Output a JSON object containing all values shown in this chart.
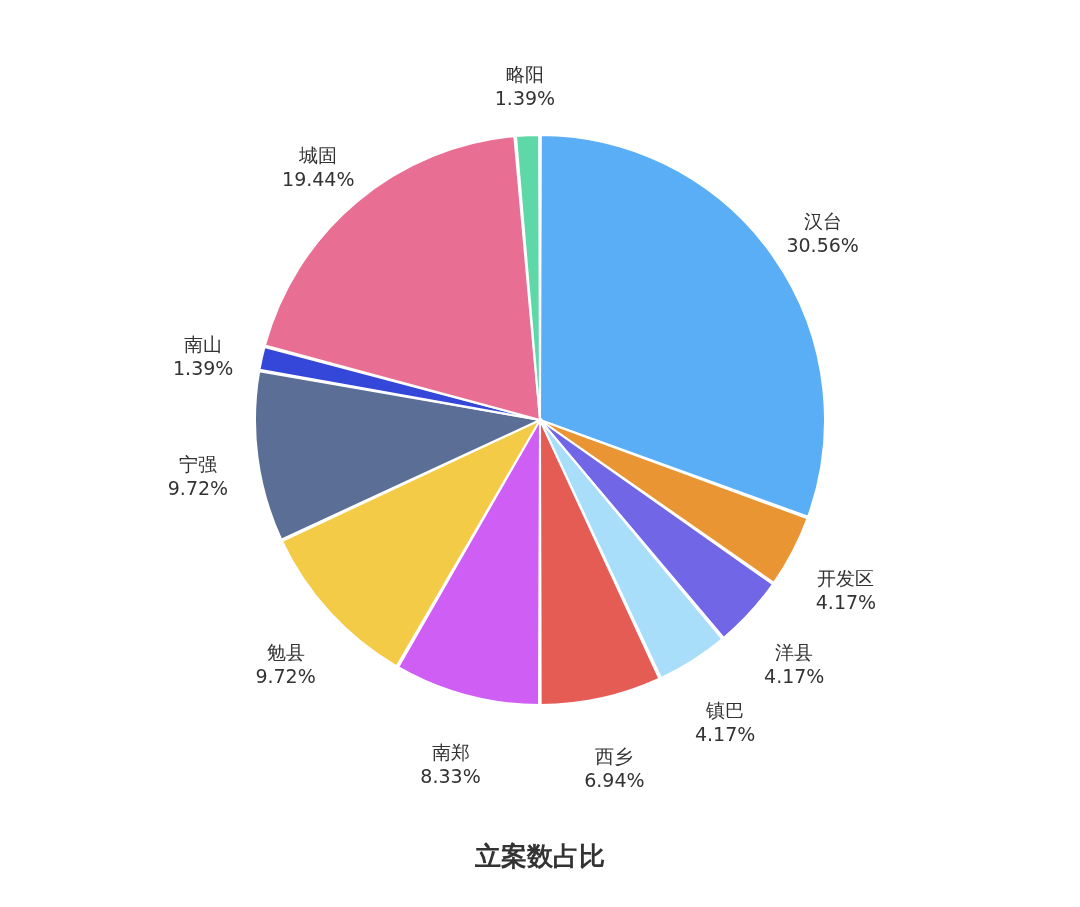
{
  "chart_data": {
    "type": "pie",
    "title": "立案数占比",
    "categories": [
      "汉台",
      "开发区",
      "洋县",
      "镇巴",
      "西乡",
      "南郑",
      "勉县",
      "宁强",
      "南山",
      "城固",
      "略阳"
    ],
    "values": [
      30.56,
      4.17,
      4.17,
      4.17,
      6.94,
      8.33,
      9.72,
      9.72,
      1.39,
      19.44,
      1.39
    ],
    "value_labels": [
      "30.56%",
      "4.17%",
      "4.17%",
      "4.17%",
      "6.94%",
      "8.33%",
      "9.72%",
      "9.72%",
      "1.39%",
      "19.44%",
      "1.39%"
    ],
    "colors": [
      "#5aaef5",
      "#ea9533",
      "#7166e6",
      "#a8def9",
      "#e55c55",
      "#cf5ef4",
      "#f4cb46",
      "#5a6e96",
      "#3447d9",
      "#e86f93",
      "#5fd8a8"
    ]
  }
}
